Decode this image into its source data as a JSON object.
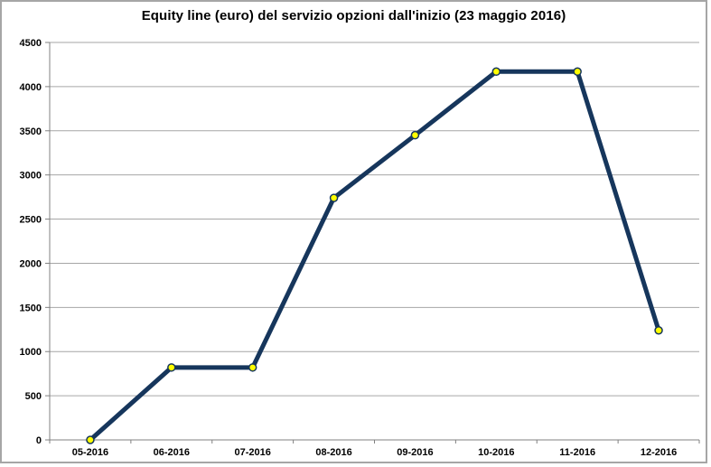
{
  "window": {
    "background": "#ffffff",
    "border_color": "#a6a6a6"
  },
  "chart_data": {
    "type": "line",
    "title": "Equity line (euro) del servizio opzioni dall'inizio (23 maggio 2016)",
    "categories": [
      "05-2016",
      "06-2016",
      "07-2016",
      "08-2016",
      "09-2016",
      "10-2016",
      "11-2016",
      "12-2016"
    ],
    "values": [
      0,
      820,
      820,
      2740,
      3450,
      4170,
      4170,
      1240
    ],
    "xlabel": "",
    "ylabel": "",
    "ylim": [
      0,
      4500
    ],
    "ytick_step": 500,
    "ytick_labels": [
      "0",
      "500",
      "1000",
      "1500",
      "2000",
      "2500",
      "3000",
      "3500",
      "4000",
      "4500"
    ],
    "grid": "horizontal",
    "legend": "none",
    "colors": {
      "line": "#16365c",
      "marker_fill": "#ffff00",
      "marker_border": "#16365c",
      "gridline": "#a6a6a6",
      "axis": "#808080",
      "text": "#000000",
      "background": "#ffffff"
    }
  }
}
